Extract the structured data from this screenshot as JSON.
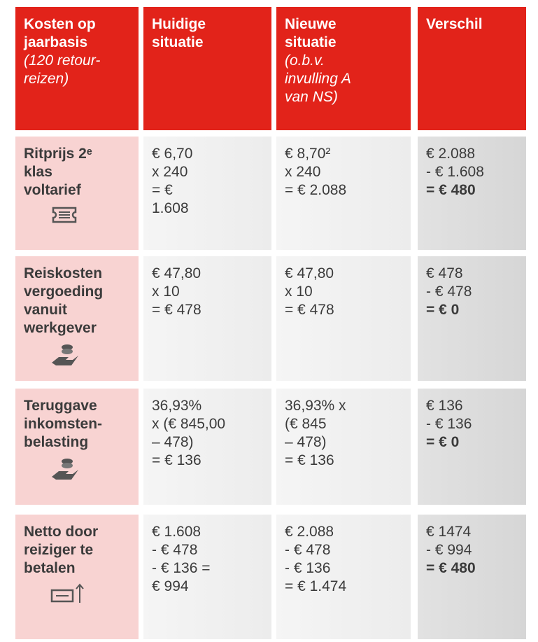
{
  "table": {
    "header": [
      {
        "title": [
          "Kosten op",
          "jaarbasis"
        ],
        "note": [
          "(120 retour-",
          "reizen)"
        ]
      },
      {
        "title": [
          "Huidige",
          "situatie"
        ],
        "note": []
      },
      {
        "title": [
          "Nieuwe",
          "situatie"
        ],
        "note": [
          "(o.b.v.",
          "invulling A",
          "van NS)"
        ]
      },
      {
        "title": [
          "Verschil"
        ],
        "note": []
      }
    ],
    "rows": [
      {
        "label": [
          "Ritprijs 2ᵉ",
          "klas",
          "voltarief"
        ],
        "cells": [
          [
            "€ 6,70",
            "x 240",
            "= €",
            "1.608"
          ],
          [
            "€ 8,70²",
            "x 240",
            "= € 2.088"
          ],
          [
            "€ 2.088",
            "- € 1.608",
            "= € 480"
          ]
        ]
      },
      {
        "label": [
          "Reiskosten",
          "vergoeding",
          "vanuit",
          "werkgever"
        ],
        "cells": [
          [
            "€ 47,80",
            "x 10",
            "= € 478"
          ],
          [
            "€ 47,80",
            "x 10",
            "= € 478"
          ],
          [
            "€ 478",
            "- € 478",
            " = € 0"
          ]
        ]
      },
      {
        "label": [
          "Teruggave",
          "inkomsten-",
          "belasting"
        ],
        "cells": [
          [
            "36,93%",
            "x (€ 845,00",
            "– 478)",
            "= € 136"
          ],
          [
            "36,93% x",
            "(€ 845",
            "– 478)",
            "= € 136"
          ],
          [
            "€ 136",
            "- € 136",
            "= € 0"
          ]
        ]
      },
      {
        "label": [
          "Netto door",
          "reiziger te",
          "betalen"
        ],
        "cells": [
          [
            "€ 1.608",
            "- € 478",
            "- € 136 =",
            "€ 994"
          ],
          [
            "€ 2.088",
            "- € 478",
            "- € 136",
            "= € 1.474"
          ],
          [
            "€ 1474",
            "- € 994",
            "= €  480"
          ]
        ]
      }
    ]
  }
}
